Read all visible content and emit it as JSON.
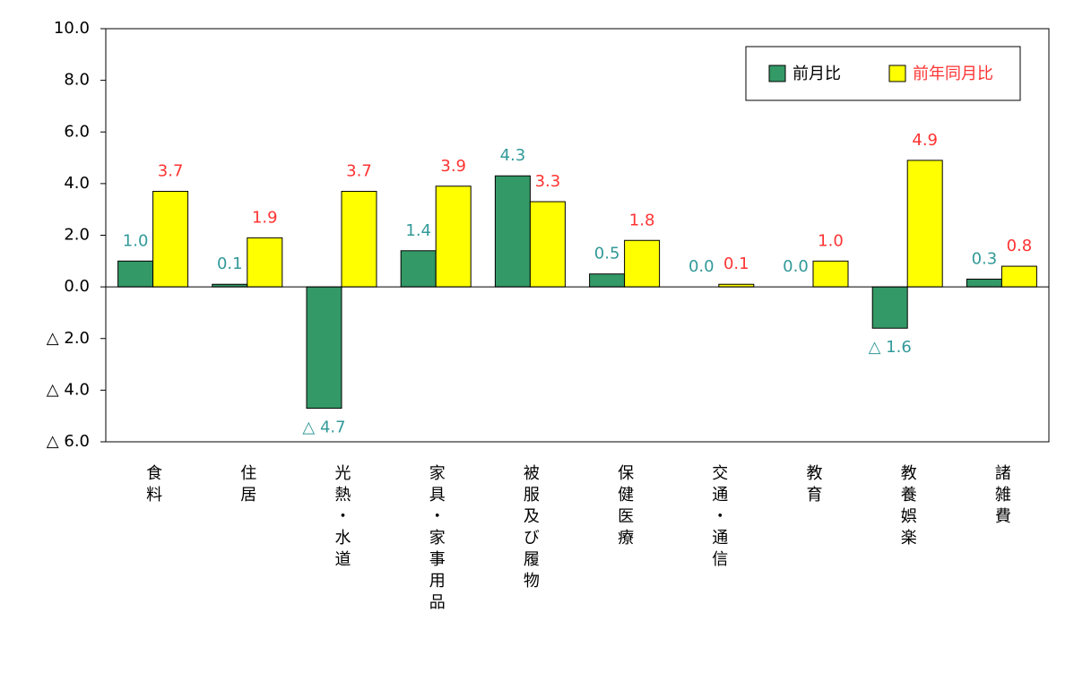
{
  "chart_data": {
    "type": "bar",
    "categories": [
      "食料",
      "住居",
      "光熱・水道",
      "家具・家事用品",
      "被服及び履物",
      "保健医療",
      "交通・通信",
      "教育",
      "教養娯楽",
      "諸雑費"
    ],
    "series": [
      {
        "name": "前月比",
        "color": "#339966",
        "label_color": "#339999",
        "legend_color": "#000000",
        "values": [
          1.0,
          0.1,
          -4.7,
          1.4,
          4.3,
          0.5,
          0.0,
          0.0,
          -1.6,
          0.3
        ],
        "value_labels": [
          "1.0",
          "0.1",
          "△ 4.7",
          "1.4",
          "4.3",
          "0.5",
          "0.0",
          "0.0",
          "△ 1.6",
          "0.3"
        ]
      },
      {
        "name": "前年同月比",
        "color": "#ffff00",
        "label_color": "#ff3333",
        "legend_color": "#ff3333",
        "values": [
          3.7,
          1.9,
          3.7,
          3.9,
          3.3,
          1.8,
          0.1,
          1.0,
          4.9,
          0.8
        ],
        "value_labels": [
          "3.7",
          "1.9",
          "3.7",
          "3.9",
          "3.3",
          "1.8",
          "0.1",
          "1.0",
          "4.9",
          "0.8"
        ]
      }
    ],
    "ylim": [
      -6,
      10
    ],
    "yticks": [
      {
        "value": -6,
        "label": "△ 6.0"
      },
      {
        "value": -4,
        "label": "△ 4.0"
      },
      {
        "value": -2,
        "label": "△ 2.0"
      },
      {
        "value": 0,
        "label": "0.0"
      },
      {
        "value": 2,
        "label": "2.0"
      },
      {
        "value": 4,
        "label": "4.0"
      },
      {
        "value": 6,
        "label": "6.0"
      },
      {
        "value": 8,
        "label": "8.0"
      },
      {
        "value": 10,
        "label": "10.0"
      }
    ],
    "grid": false,
    "legend": "upper right"
  }
}
